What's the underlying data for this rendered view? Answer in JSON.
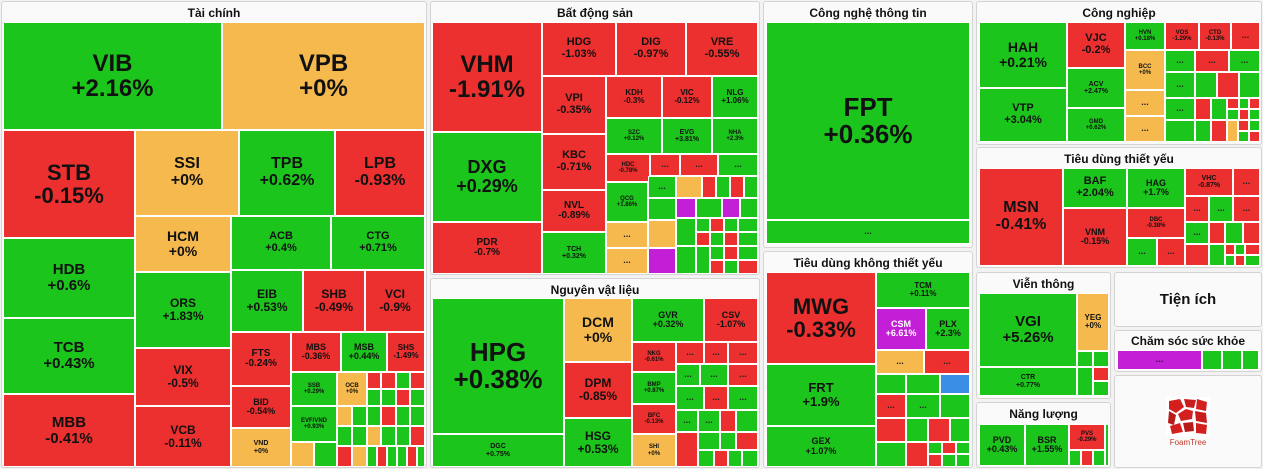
{
  "sectors": {
    "tai_chinh": "Tài chính",
    "bat_dong_san": "Bất động sản",
    "cong_nghe": "Công nghệ thông tin",
    "cong_nghiep": "Công nghiệp",
    "tieu_dung_thiet_yeu": "Tiêu dùng thiết yếu",
    "nguyen_vat_lieu": "Nguyên vật liệu",
    "tieu_dung_khong": "Tiêu dùng không thiết yếu",
    "vien_thong": "Viễn thông",
    "tien_ich": "Tiện ích",
    "cham_soc": "Chăm sóc sức khỏe",
    "nang_luong": "Năng lượng"
  },
  "more": "...",
  "logo_text": "FoamTree",
  "colors": {
    "up": "#1cc51c",
    "down": "#ec2f2f",
    "flat": "#f6b94e",
    "ceiling": "#c21fd7",
    "floor": "#3a8ee6"
  },
  "tiles": {
    "VIB": {
      "s": "VIB",
      "c": "+2.16%"
    },
    "VPB": {
      "s": "VPB",
      "c": "+0%"
    },
    "STB": {
      "s": "STB",
      "c": "-0.15%"
    },
    "SSI": {
      "s": "SSI",
      "c": "+0%"
    },
    "TPB": {
      "s": "TPB",
      "c": "+0.62%"
    },
    "LPB": {
      "s": "LPB",
      "c": "-0.93%"
    },
    "HCM": {
      "s": "HCM",
      "c": "+0%"
    },
    "ACB": {
      "s": "ACB",
      "c": "+0.4%"
    },
    "CTG": {
      "s": "CTG",
      "c": "+0.71%"
    },
    "HDB": {
      "s": "HDB",
      "c": "+0.6%"
    },
    "ORS": {
      "s": "ORS",
      "c": "+1.83%"
    },
    "EIB": {
      "s": "EIB",
      "c": "+0.53%"
    },
    "SHB": {
      "s": "SHB",
      "c": "-0.49%"
    },
    "VCI": {
      "s": "VCI",
      "c": "-0.9%"
    },
    "TCB": {
      "s": "TCB",
      "c": "+0.43%"
    },
    "VIX": {
      "s": "VIX",
      "c": "-0.5%"
    },
    "FTS": {
      "s": "FTS",
      "c": "-0.24%"
    },
    "MBS": {
      "s": "MBS",
      "c": "-0.36%"
    },
    "MSB": {
      "s": "MSB",
      "c": "+0.44%"
    },
    "SHS": {
      "s": "SHS",
      "c": "-1.49%"
    },
    "MBB": {
      "s": "MBB",
      "c": "-0.41%"
    },
    "VCB": {
      "s": "VCB",
      "c": "-0.11%"
    },
    "BID": {
      "s": "BID",
      "c": "-0.54%"
    },
    "SSB": {
      "s": "SSB",
      "c": "+0.29%"
    },
    "OCB": {
      "s": "OCB",
      "c": "+0%"
    },
    "EVF": {
      "s": "EVF/VND",
      "c": "+0.93%"
    },
    "VND": {
      "s": "VND",
      "c": "+0%"
    },
    "VHM": {
      "s": "VHM",
      "c": "-1.91%"
    },
    "HDG": {
      "s": "HDG",
      "c": "-1.03%"
    },
    "DIG": {
      "s": "DIG",
      "c": "-0.97%"
    },
    "VRE": {
      "s": "VRE",
      "c": "-0.55%"
    },
    "VPI": {
      "s": "VPI",
      "c": "-0.35%"
    },
    "KDH": {
      "s": "KDH",
      "c": "-0.3%"
    },
    "VIC": {
      "s": "VIC",
      "c": "-0.12%"
    },
    "NLG": {
      "s": "NLG",
      "c": "+1.06%"
    },
    "SZC": {
      "s": "SZC",
      "c": "+0.12%"
    },
    "EVG": {
      "s": "EVG",
      "c": "+3.81%"
    },
    "NHA": {
      "s": "NHA",
      "c": "+2.3%"
    },
    "DXG": {
      "s": "DXG",
      "c": "+0.29%"
    },
    "KBC": {
      "s": "KBC",
      "c": "-0.71%"
    },
    "HDC": {
      "s": "HDC",
      "c": "-0.78%"
    },
    "NVL": {
      "s": "NVL",
      "c": "-0.89%"
    },
    "QCG": {
      "s": "QCG",
      "c": "+1.86%"
    },
    "PDR": {
      "s": "PDR",
      "c": "-0.7%"
    },
    "TCH": {
      "s": "TCH",
      "c": "+0.32%"
    },
    "FPT": {
      "s": "FPT",
      "c": "+0.36%"
    },
    "HAH": {
      "s": "HAH",
      "c": "+0.21%"
    },
    "VJC": {
      "s": "VJC",
      "c": "-0.2%"
    },
    "HVN": {
      "s": "HVN",
      "c": "+0.18%"
    },
    "VOS": {
      "s": "VOS",
      "c": "-1.29%"
    },
    "CTD": {
      "s": "CTD",
      "c": "-0.13%"
    },
    "ACV": {
      "s": "ACV",
      "c": "+2.47%"
    },
    "BCC": {
      "s": "BCC",
      "c": "+0%"
    },
    "VTP": {
      "s": "VTP",
      "c": "+3.04%"
    },
    "GMD": {
      "s": "GMD",
      "c": "+0.62%"
    },
    "MSN": {
      "s": "MSN",
      "c": "-0.41%"
    },
    "BAF": {
      "s": "BAF",
      "c": "+2.04%"
    },
    "HAG": {
      "s": "HAG",
      "c": "+1.7%"
    },
    "VHC": {
      "s": "VHC",
      "c": "-0.87%"
    },
    "VNM": {
      "s": "VNM",
      "c": "-0.15%"
    },
    "DBC": {
      "s": "DBC",
      "c": "-0.38%"
    },
    "HPG": {
      "s": "HPG",
      "c": "+0.38%"
    },
    "DCM": {
      "s": "DCM",
      "c": "+0%"
    },
    "GVR": {
      "s": "GVR",
      "c": "+0.32%"
    },
    "CSV": {
      "s": "CSV",
      "c": "-1.07%"
    },
    "NKG": {
      "s": "NKG",
      "c": "-0.61%"
    },
    "DPM": {
      "s": "DPM",
      "c": "-0.85%"
    },
    "BMP": {
      "s": "BMP",
      "c": "+0.87%"
    },
    "BFC": {
      "s": "BFC",
      "c": "-0.13%"
    },
    "HSG": {
      "s": "HSG",
      "c": "+0.53%"
    },
    "SHI": {
      "s": "SHI",
      "c": "+0%"
    },
    "DGC": {
      "s": "DGC",
      "c": "+0.75%"
    },
    "MWG": {
      "s": "MWG",
      "c": "-0.33%"
    },
    "TCM": {
      "s": "TCM",
      "c": "+0.11%"
    },
    "CSM": {
      "s": "CSM",
      "c": "+6.61%"
    },
    "PLX": {
      "s": "PLX",
      "c": "+2.3%"
    },
    "FRT": {
      "s": "FRT",
      "c": "+1.9%"
    },
    "GEX": {
      "s": "GEX",
      "c": "+1.07%"
    },
    "VGI": {
      "s": "VGI",
      "c": "+5.26%"
    },
    "YEG": {
      "s": "YEG",
      "c": "+0%"
    },
    "CTR": {
      "s": "CTR",
      "c": "+0.77%"
    },
    "PVD": {
      "s": "PVD",
      "c": "+0.43%"
    },
    "BSR": {
      "s": "BSR",
      "c": "+1.55%"
    },
    "PVS": {
      "s": "PVS",
      "c": "-0.29%"
    }
  }
}
